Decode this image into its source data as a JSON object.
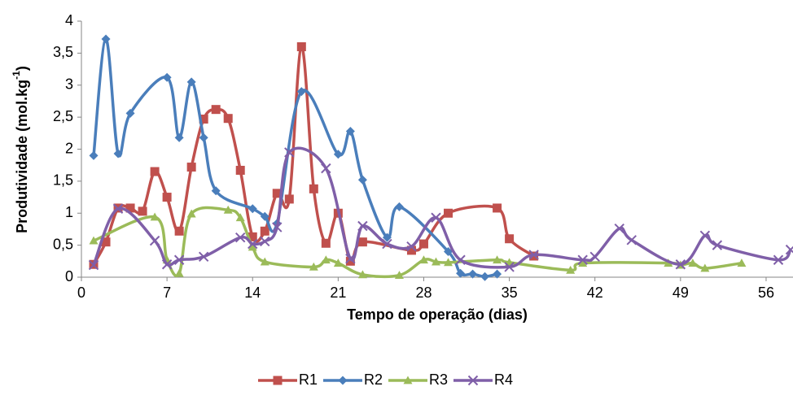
{
  "chart_data": {
    "type": "line",
    "smooth": true,
    "x_label": "Tempo de operação (dias)",
    "y_label": {
      "text": "Produtividade (mol.kg",
      "superscript": "-1",
      "suffix": ")"
    },
    "xlim": [
      0,
      58.2
    ],
    "xticks": [
      0,
      7,
      14,
      21,
      28,
      35,
      42,
      49,
      56
    ],
    "ylim": [
      0,
      4
    ],
    "yticks": [
      0,
      {
        "value": 0.5,
        "label": "0,5"
      },
      1,
      {
        "value": 1.5,
        "label": "1,5"
      },
      2,
      {
        "value": 2.5,
        "label": "2,5"
      },
      3,
      {
        "value": 3.5,
        "label": "3,5"
      },
      4
    ],
    "grid": false,
    "legend": "bottom",
    "series": [
      {
        "name": "R1",
        "color": "#c0504d",
        "marker": "square",
        "x": [
          1,
          2,
          3,
          4,
          5,
          6,
          7,
          8,
          9,
          10,
          11,
          12,
          13,
          14,
          15,
          16,
          17,
          18,
          19,
          20,
          21,
          22,
          23,
          27,
          28,
          30,
          34,
          35,
          37
        ],
        "values": [
          0.2,
          0.55,
          1.08,
          1.08,
          1.03,
          1.65,
          1.25,
          0.72,
          1.72,
          2.47,
          2.62,
          2.48,
          1.67,
          0.63,
          0.72,
          1.31,
          1.22,
          3.6,
          1.38,
          0.53,
          1.0,
          0.25,
          0.55,
          0.42,
          0.52,
          1.0,
          1.08,
          0.6,
          0.33
        ]
      },
      {
        "name": "R2",
        "color": "#4a7ebb",
        "marker": "diamond",
        "x": [
          1,
          2,
          3,
          4,
          7,
          8,
          9,
          10,
          11,
          14,
          15,
          16,
          18,
          21,
          22,
          23,
          25,
          26,
          30,
          31,
          32,
          33,
          34
        ],
        "values": [
          1.9,
          3.72,
          1.93,
          2.56,
          3.12,
          2.18,
          3.05,
          2.18,
          1.35,
          1.07,
          0.95,
          0.84,
          2.9,
          1.92,
          2.28,
          1.52,
          0.62,
          1.1,
          0.4,
          0.06,
          0.05,
          0.01,
          0.05
        ]
      },
      {
        "name": "R3",
        "color": "#9bbb59",
        "marker": "triangle",
        "x": [
          1,
          6,
          7,
          8,
          9,
          12,
          13,
          14,
          15,
          19,
          20,
          21,
          23,
          26,
          28,
          29,
          30,
          34,
          35,
          40,
          41,
          48,
          49,
          50,
          51,
          54
        ],
        "values": [
          0.57,
          0.94,
          0.27,
          0.06,
          0.99,
          1.05,
          0.93,
          0.47,
          0.24,
          0.16,
          0.27,
          0.22,
          0.04,
          0.03,
          0.27,
          0.24,
          0.23,
          0.27,
          0.23,
          0.11,
          0.22,
          0.22,
          0.19,
          0.22,
          0.14,
          0.22
        ]
      },
      {
        "name": "R4",
        "color": "#7f5fa8",
        "marker": "x",
        "x": [
          1,
          3,
          6,
          7,
          8,
          10,
          13,
          14,
          15,
          16,
          17,
          20,
          22,
          23,
          25,
          27,
          29,
          31,
          35,
          37,
          41,
          42,
          44,
          45,
          49,
          51,
          52,
          57,
          58
        ],
        "values": [
          0.19,
          1.07,
          0.57,
          0.2,
          0.27,
          0.32,
          0.62,
          0.52,
          0.56,
          0.78,
          1.95,
          1.7,
          0.29,
          0.8,
          0.52,
          0.48,
          0.93,
          0.27,
          0.16,
          0.35,
          0.27,
          0.32,
          0.76,
          0.58,
          0.2,
          0.65,
          0.5,
          0.27,
          0.43
        ]
      }
    ]
  }
}
